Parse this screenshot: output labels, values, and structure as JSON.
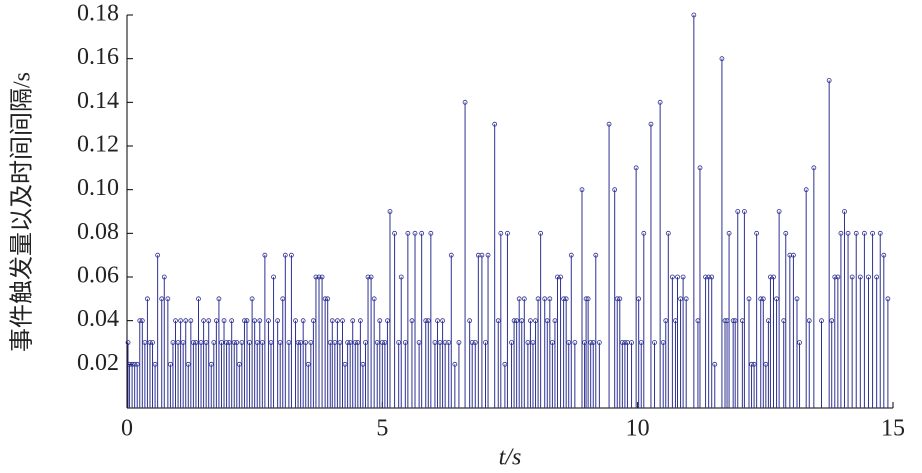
{
  "chart_data": {
    "type": "stem",
    "xlabel": "t/s",
    "ylabel": "事件触发量以及时间间隔/s",
    "xlim": [
      0,
      15
    ],
    "ylim": [
      0,
      0.18
    ],
    "xticks": [
      0,
      5,
      10,
      15
    ],
    "yticks": [
      0.02,
      0.04,
      0.06,
      0.08,
      {
        "value": 0.1,
        "label": "0.10"
      },
      0.12,
      0.14,
      0.16,
      0.18
    ],
    "series": [
      {
        "color": "#2e3192",
        "x": [
          0.02,
          0.05,
          0.1,
          0.15,
          0.2,
          0.25,
          0.3,
          0.35,
          0.4,
          0.45,
          0.5,
          0.55,
          0.6,
          0.68,
          0.73,
          0.8,
          0.85,
          0.9,
          0.95,
          1.0,
          1.05,
          1.1,
          1.15,
          1.2,
          1.25,
          1.3,
          1.35,
          1.4,
          1.45,
          1.5,
          1.55,
          1.6,
          1.65,
          1.7,
          1.75,
          1.8,
          1.85,
          1.9,
          1.95,
          2.0,
          2.05,
          2.1,
          2.15,
          2.2,
          2.25,
          2.3,
          2.35,
          2.4,
          2.45,
          2.5,
          2.55,
          2.6,
          2.65,
          2.7,
          2.77,
          2.82,
          2.87,
          2.95,
          3.0,
          3.05,
          3.1,
          3.17,
          3.22,
          3.3,
          3.35,
          3.4,
          3.45,
          3.5,
          3.55,
          3.6,
          3.65,
          3.7,
          3.76,
          3.82,
          3.88,
          3.93,
          3.98,
          4.02,
          4.07,
          4.12,
          4.17,
          4.22,
          4.27,
          4.32,
          4.37,
          4.42,
          4.47,
          4.52,
          4.57,
          4.62,
          4.67,
          4.72,
          4.78,
          4.84,
          4.9,
          4.95,
          5.0,
          5.05,
          5.1,
          5.15,
          5.24,
          5.32,
          5.37,
          5.45,
          5.5,
          5.58,
          5.64,
          5.72,
          5.77,
          5.85,
          5.9,
          5.95,
          6.03,
          6.08,
          6.13,
          6.18,
          6.23,
          6.3,
          6.35,
          6.42,
          6.5,
          6.62,
          6.71,
          6.76,
          6.82,
          6.88,
          6.95,
          7.02,
          7.07,
          7.2,
          7.27,
          7.32,
          7.4,
          7.45,
          7.53,
          7.58,
          7.63,
          7.68,
          7.73,
          7.78,
          7.85,
          7.9,
          7.95,
          8.0,
          8.05,
          8.1,
          8.18,
          8.23,
          8.28,
          8.33,
          8.38,
          8.43,
          8.49,
          8.55,
          8.6,
          8.65,
          8.7,
          8.77,
          8.91,
          8.96,
          8.99,
          9.03,
          9.08,
          9.13,
          9.18,
          9.25,
          9.44,
          9.55,
          9.6,
          9.65,
          9.7,
          9.75,
          9.8,
          9.88,
          9.97,
          10.02,
          10.07,
          10.12,
          10.26,
          10.33,
          10.44,
          10.5,
          10.55,
          10.6,
          10.68,
          10.74,
          10.78,
          10.84,
          10.89,
          10.95,
          11.1,
          11.18,
          11.22,
          11.33,
          11.39,
          11.45,
          11.51,
          11.65,
          11.71,
          11.75,
          11.79,
          11.87,
          11.91,
          11.96,
          12.05,
          12.09,
          12.18,
          12.23,
          12.28,
          12.33,
          12.41,
          12.46,
          12.51,
          12.56,
          12.6,
          12.66,
          12.72,
          12.77,
          12.86,
          12.9,
          12.98,
          13.05,
          13.12,
          13.17,
          13.3,
          13.36,
          13.45,
          13.6,
          13.75,
          13.8,
          13.86,
          13.92,
          13.98,
          14.05,
          14.12,
          14.2,
          14.28,
          14.36,
          14.44,
          14.52,
          14.6,
          14.68,
          14.75,
          14.82,
          14.9
        ],
        "values": [
          0.03,
          0.02,
          0.02,
          0.02,
          0.02,
          0.04,
          0.04,
          0.03,
          0.05,
          0.03,
          0.03,
          0.02,
          0.07,
          0.05,
          0.06,
          0.05,
          0.02,
          0.03,
          0.04,
          0.03,
          0.04,
          0.03,
          0.04,
          0.02,
          0.04,
          0.03,
          0.03,
          0.05,
          0.03,
          0.04,
          0.03,
          0.04,
          0.02,
          0.03,
          0.04,
          0.05,
          0.03,
          0.04,
          0.03,
          0.03,
          0.04,
          0.03,
          0.03,
          0.02,
          0.03,
          0.04,
          0.04,
          0.03,
          0.05,
          0.04,
          0.03,
          0.04,
          0.03,
          0.07,
          0.04,
          0.03,
          0.06,
          0.04,
          0.03,
          0.05,
          0.07,
          0.03,
          0.07,
          0.04,
          0.03,
          0.03,
          0.04,
          0.03,
          0.02,
          0.03,
          0.04,
          0.06,
          0.06,
          0.06,
          0.05,
          0.05,
          0.03,
          0.04,
          0.03,
          0.04,
          0.03,
          0.04,
          0.02,
          0.03,
          0.03,
          0.04,
          0.03,
          0.03,
          0.04,
          0.02,
          0.03,
          0.06,
          0.06,
          0.05,
          0.03,
          0.04,
          0.03,
          0.03,
          0.04,
          0.09,
          0.08,
          0.03,
          0.06,
          0.03,
          0.08,
          0.04,
          0.08,
          0.03,
          0.08,
          0.04,
          0.04,
          0.08,
          0.03,
          0.04,
          0.03,
          0.04,
          0.03,
          0.03,
          0.07,
          0.02,
          0.03,
          0.14,
          0.04,
          0.03,
          0.03,
          0.07,
          0.07,
          0.03,
          0.07,
          0.13,
          0.04,
          0.08,
          0.02,
          0.08,
          0.03,
          0.04,
          0.04,
          0.05,
          0.04,
          0.05,
          0.03,
          0.04,
          0.03,
          0.04,
          0.05,
          0.08,
          0.05,
          0.04,
          0.05,
          0.03,
          0.04,
          0.06,
          0.06,
          0.05,
          0.05,
          0.03,
          0.07,
          0.03,
          0.1,
          0.03,
          0.05,
          0.05,
          0.03,
          0.03,
          0.07,
          0.03,
          0.13,
          0.1,
          0.05,
          0.05,
          0.03,
          0.03,
          0.03,
          0.03,
          0.11,
          0.05,
          0.03,
          0.08,
          0.13,
          0.03,
          0.14,
          0.03,
          0.04,
          0.08,
          0.06,
          0.04,
          0.06,
          0.05,
          0.06,
          0.05,
          0.18,
          0.04,
          0.11,
          0.06,
          0.06,
          0.06,
          0.02,
          0.16,
          0.04,
          0.04,
          0.08,
          0.04,
          0.04,
          0.09,
          0.04,
          0.09,
          0.05,
          0.02,
          0.02,
          0.08,
          0.05,
          0.05,
          0.02,
          0.04,
          0.06,
          0.06,
          0.05,
          0.09,
          0.04,
          0.08,
          0.07,
          0.07,
          0.05,
          0.03,
          0.1,
          0.04,
          0.11,
          0.04,
          0.15,
          0.04,
          0.06,
          0.06,
          0.08,
          0.09,
          0.08,
          0.06,
          0.08,
          0.06,
          0.08,
          0.06,
          0.08,
          0.06,
          0.08,
          0.07,
          0.05
        ]
      }
    ]
  }
}
